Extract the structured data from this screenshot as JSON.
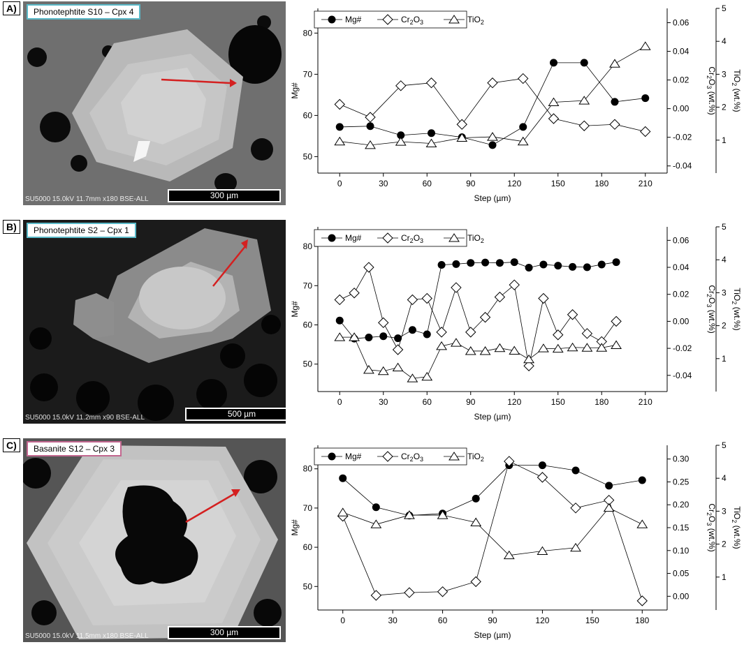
{
  "colors": {
    "teal_frame": "#5ab9c8",
    "pink_frame": "#c2678f",
    "arrow": "#d42020"
  },
  "panels": [
    {
      "label": "A)",
      "sem": {
        "title": "Phonotephtite S10 – Cpx 4",
        "frame_color": "#5ab9c8",
        "footer": "SU5000 15.0kV 11.7mm x180 BSE-ALL",
        "scale": "300 µm"
      },
      "chart_data": {
        "type": "line",
        "xlabel": "Step (µm)",
        "ylabel": "Mg#",
        "y2label": "Cr2O3 (wt.%)",
        "y3label": "TiO2 (wt.%)",
        "xlim": [
          -15,
          225
        ],
        "xticks": [
          0,
          30,
          60,
          90,
          120,
          150,
          180,
          210
        ],
        "ylim": [
          46,
          86
        ],
        "yticks": [
          50,
          60,
          70,
          80
        ],
        "y2lim": [
          -0.045,
          0.07
        ],
        "y2ticks": [
          "-0.04",
          "-0.02",
          "0.00",
          "0.02",
          "0.04",
          "0.06"
        ],
        "y2tickvals": [
          -0.04,
          -0.02,
          0.0,
          0.02,
          0.04,
          0.06
        ],
        "y3lim": [
          0,
          5
        ],
        "y3ticks": [
          1,
          2,
          3,
          4,
          5
        ],
        "legend": [
          "Mg#",
          "Cr2O3",
          "TiO2"
        ],
        "series": [
          {
            "name": "Mg#",
            "marker": "circle",
            "axis": "y",
            "x": [
              0,
              21,
              42,
              63,
              84,
              105,
              126,
              147,
              168,
              189,
              210
            ],
            "values": [
              57.2,
              57.4,
              55.2,
              55.7,
              54.7,
              52.8,
              57.2,
              72.8,
              72.8,
              63.3,
              64.2
            ]
          },
          {
            "name": "Cr2O3",
            "marker": "diamond",
            "axis": "y2",
            "x": [
              0,
              21,
              42,
              63,
              84,
              105,
              126,
              147,
              168,
              189,
              210
            ],
            "values": [
              0.003,
              -0.006,
              0.016,
              0.018,
              -0.011,
              0.018,
              0.021,
              -0.007,
              -0.012,
              -0.011,
              -0.016
            ]
          },
          {
            "name": "TiO2",
            "marker": "triangle",
            "axis": "y3",
            "x": [
              0,
              21,
              42,
              63,
              84,
              105,
              126,
              147,
              168,
              189,
              210
            ],
            "values": [
              0.96,
              0.85,
              0.95,
              0.9,
              1.07,
              1.1,
              0.96,
              2.15,
              2.2,
              3.32,
              3.85
            ]
          }
        ]
      }
    },
    {
      "label": "B)",
      "sem": {
        "title": "Phonotephtite S2 – Cpx 1",
        "frame_color": "#5ab9c8",
        "footer": "SU5000 15.0kV 11.2mm x90 BSE-ALL",
        "scale": "500 µm"
      },
      "chart_data": {
        "type": "line",
        "xlabel": "Step (µm)",
        "ylabel": "Mg#",
        "y2label": "Cr2O3 (wt.%)",
        "y3label": "TiO2 (wt.%)",
        "xlim": [
          -15,
          225
        ],
        "xticks": [
          0,
          30,
          60,
          90,
          120,
          150,
          180,
          210
        ],
        "ylim": [
          43,
          85
        ],
        "yticks": [
          50,
          60,
          70,
          80
        ],
        "y2lim": [
          -0.052,
          0.07
        ],
        "y2ticks": [
          "-0.04",
          "-0.02",
          "0.00",
          "0.02",
          "0.04",
          "0.06"
        ],
        "y2tickvals": [
          -0.04,
          -0.02,
          0.0,
          0.02,
          0.04,
          0.06
        ],
        "y3lim": [
          0,
          5
        ],
        "y3ticks": [
          1,
          2,
          3,
          4,
          5
        ],
        "legend": [
          "Mg#",
          "Cr2O3",
          "TiO2"
        ],
        "series": [
          {
            "name": "Mg#",
            "marker": "circle",
            "axis": "y",
            "x": [
              0,
              10,
              20,
              30,
              40,
              50,
              60,
              70,
              80,
              90,
              100,
              110,
              120,
              130,
              140,
              150,
              160,
              170,
              180,
              190
            ],
            "values": [
              61.1,
              56.5,
              56.8,
              57.1,
              56.6,
              58.7,
              57.6,
              75.3,
              75.5,
              75.8,
              75.9,
              75.8,
              76.0,
              74.6,
              75.4,
              75.1,
              74.8,
              74.7,
              75.4,
              76.0
            ]
          },
          {
            "name": "Cr2O3",
            "marker": "diamond",
            "axis": "y2",
            "x": [
              0,
              10,
              20,
              30,
              40,
              50,
              60,
              70,
              80,
              90,
              100,
              110,
              120,
              130,
              140,
              150,
              160,
              170,
              180,
              190
            ],
            "values": [
              0.016,
              0.021,
              0.04,
              -0.001,
              -0.021,
              0.016,
              0.017,
              -0.008,
              0.025,
              -0.008,
              0.003,
              0.018,
              0.027,
              -0.033,
              0.017,
              -0.01,
              0.005,
              -0.009,
              -0.015,
              0.0
            ]
          },
          {
            "name": "TiO2",
            "marker": "triangle",
            "axis": "y3",
            "x": [
              0,
              10,
              20,
              30,
              40,
              50,
              60,
              70,
              80,
              90,
              100,
              110,
              120,
              130,
              140,
              150,
              160,
              170,
              180,
              190
            ],
            "values": [
              1.65,
              1.65,
              0.66,
              0.62,
              0.73,
              0.4,
              0.45,
              1.38,
              1.48,
              1.23,
              1.23,
              1.32,
              1.24,
              0.98,
              1.31,
              1.3,
              1.34,
              1.33,
              1.33,
              1.41
            ]
          }
        ]
      }
    },
    {
      "label": "C)",
      "sem": {
        "title": "Basanite S12 – Cpx 3",
        "frame_color": "#c2678f",
        "footer": "SU5000 15.0kV 11.5mm x180 BSE-ALL",
        "scale": "300 µm"
      },
      "chart_data": {
        "type": "line",
        "xlabel": "Step (µm)",
        "ylabel": "Mg#",
        "y2label": "Cr2O3 (wt.%)",
        "y3label": "TiO2 (wt.%)",
        "xlim": [
          -15,
          195
        ],
        "xticks": [
          0,
          30,
          60,
          90,
          120,
          150,
          180
        ],
        "ylim": [
          44,
          86
        ],
        "yticks": [
          50,
          60,
          70,
          80
        ],
        "y2lim": [
          -0.03,
          0.33
        ],
        "y2ticks": [
          "0.00",
          "0.05",
          "0.10",
          "0.15",
          "0.20",
          "0.25",
          "0.30"
        ],
        "y2tickvals": [
          0.0,
          0.05,
          0.1,
          0.15,
          0.2,
          0.25,
          0.3
        ],
        "y3lim": [
          0,
          5
        ],
        "y3ticks": [
          1,
          2,
          3,
          4,
          5
        ],
        "legend": [
          "Mg#",
          "Cr2O3",
          "TiO2"
        ],
        "series": [
          {
            "name": "Mg#",
            "marker": "circle",
            "axis": "y",
            "x": [
              0,
              20,
              40,
              60,
              80,
              100,
              120,
              140,
              160,
              180
            ],
            "values": [
              77.6,
              70.2,
              68.1,
              68.6,
              72.4,
              80.9,
              80.9,
              79.6,
              75.7,
              77.1
            ]
          },
          {
            "name": "Cr2O3",
            "marker": "diamond",
            "axis": "y2",
            "x": [
              0,
              20,
              40,
              60,
              80,
              100,
              120,
              140,
              160,
              180
            ],
            "values": [
              0.175,
              0.002,
              0.008,
              0.01,
              0.032,
              0.295,
              0.26,
              0.193,
              0.21,
              -0.01
            ]
          },
          {
            "name": "TiO2",
            "marker": "triangle",
            "axis": "y3",
            "x": [
              0,
              20,
              40,
              60,
              80,
              100,
              120,
              140,
              160,
              180
            ],
            "values": [
              2.96,
              2.6,
              2.88,
              2.88,
              2.66,
              1.66,
              1.79,
              1.89,
              3.1,
              2.6
            ]
          }
        ]
      }
    }
  ]
}
